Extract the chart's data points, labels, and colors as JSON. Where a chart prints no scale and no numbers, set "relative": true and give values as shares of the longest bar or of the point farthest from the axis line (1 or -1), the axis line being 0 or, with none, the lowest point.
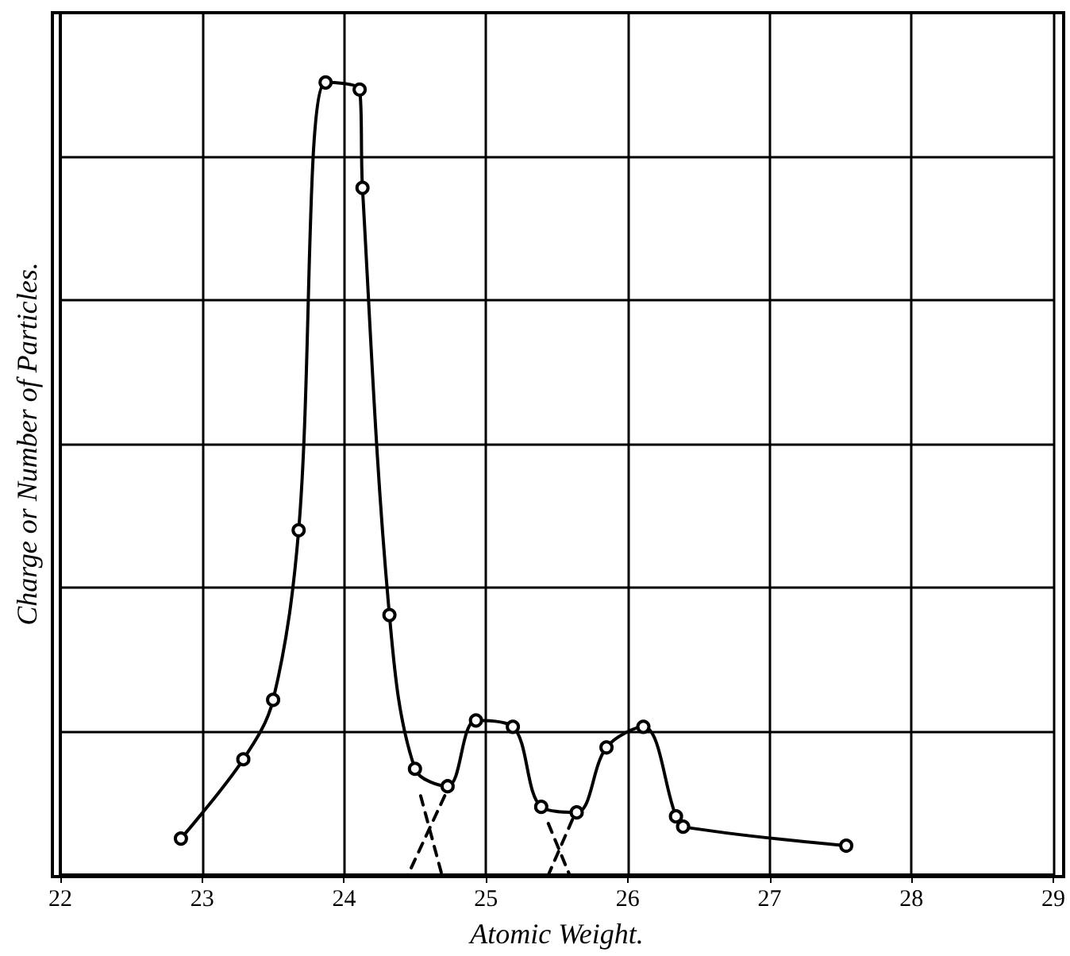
{
  "chart_data": {
    "type": "line",
    "xlabel": "Atomic Weight.",
    "ylabel": "Charge or Number of Particles.",
    "relative": true,
    "xlim": [
      22,
      29
    ],
    "xticks": [
      22,
      23,
      24,
      25,
      26,
      27,
      28,
      29
    ],
    "grid": true,
    "series": [
      {
        "color": "#000000",
        "marker": "circle",
        "line_style": "solid",
        "x": [
          22.85,
          23.29,
          23.5,
          23.68,
          23.87,
          24.11,
          24.13,
          24.32,
          24.5,
          24.73,
          24.93,
          25.19,
          25.39,
          25.64,
          25.85,
          26.11,
          26.34,
          26.39,
          27.54
        ],
        "values": [
          0.046,
          0.146,
          0.221,
          0.435,
          1.0,
          0.991,
          0.867,
          0.328,
          0.134,
          0.112,
          0.195,
          0.187,
          0.086,
          0.079,
          0.161,
          0.187,
          0.074,
          0.061,
          0.037
        ]
      },
      {
        "color": "#000000",
        "marker": "none",
        "line_style": "dashed",
        "x": [
          24.54,
          24.69,
          24.7,
          24.71,
          24.45,
          25.0,
          25.44,
          25.59,
          25.6,
          25.61,
          25.44
        ],
        "values": [
          0.1,
          0,
          null,
          0.1,
          0,
          null,
          0.065,
          0,
          null,
          0.07,
          0
        ]
      }
    ]
  }
}
